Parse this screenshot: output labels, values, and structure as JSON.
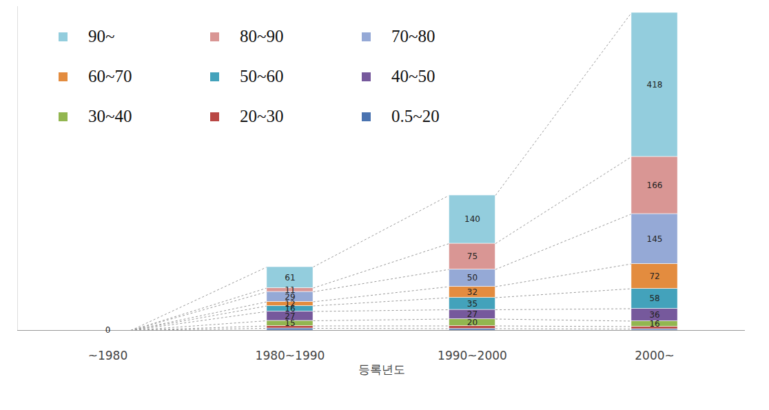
{
  "chart_data": {
    "type": "bar",
    "stacked": true,
    "data_labels": true,
    "tick_labels": "x",
    "legend": "top-left",
    "x_label": "등록년도",
    "categories": [
      "~1980",
      "1980~1990",
      "1990~2000",
      "2000~"
    ],
    "ylim": [
      0,
      940
    ],
    "yticks": [],
    "series": [
      {
        "name": "90~",
        "color": "#93cddd",
        "values": [
          0,
          61,
          140,
          418
        ],
        "value_labels": [
          null,
          "61",
          "140",
          "418"
        ]
      },
      {
        "name": "80~90",
        "color": "#d99694",
        "values": [
          0,
          11,
          75,
          166
        ],
        "value_labels": [
          null,
          "11",
          "75",
          "166"
        ]
      },
      {
        "name": "70~80",
        "color": "#95a9d6",
        "values": [
          0,
          29,
          50,
          145
        ],
        "value_labels": [
          null,
          "29",
          "50",
          "145"
        ]
      },
      {
        "name": "60~70",
        "color": "#e38c3f",
        "values": [
          0,
          12,
          32,
          72
        ],
        "value_labels": [
          null,
          "12",
          "32",
          "72"
        ]
      },
      {
        "name": "50~60",
        "color": "#43a2bb",
        "values": [
          0,
          16,
          35,
          58
        ],
        "value_labels": [
          null,
          "16",
          "35",
          "58"
        ]
      },
      {
        "name": "40~50",
        "color": "#76599c",
        "values": [
          0,
          27,
          27,
          36
        ],
        "value_labels": [
          null,
          "27",
          "27",
          "36"
        ]
      },
      {
        "name": "30~40",
        "color": "#92b650",
        "values": [
          0,
          15,
          20,
          16
        ],
        "value_labels": [
          null,
          "15",
          "20",
          "16"
        ]
      },
      {
        "name": "20~30",
        "color": "#b94744",
        "values": [
          0,
          7,
          8,
          7
        ],
        "value_labels": [
          null,
          null,
          null,
          null
        ]
      },
      {
        "name": "0.5~20",
        "color": "#4a73b0",
        "values": [
          0,
          6,
          5,
          4
        ],
        "value_labels": [
          "0",
          null,
          null,
          null
        ]
      }
    ]
  }
}
